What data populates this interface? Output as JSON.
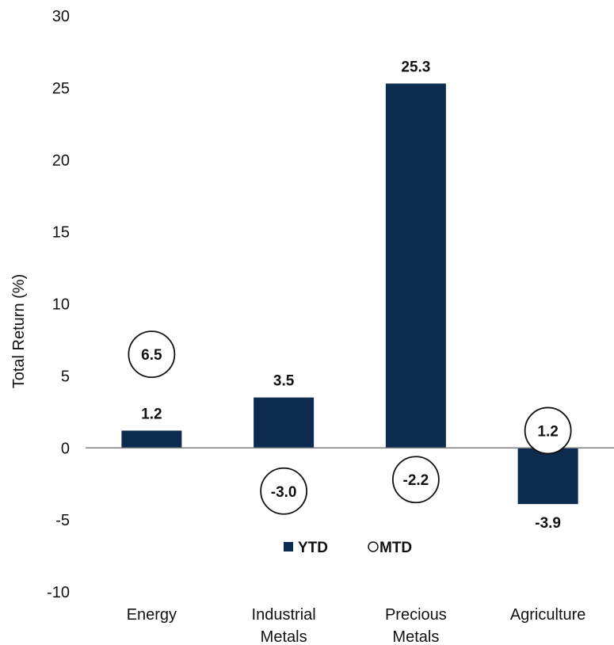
{
  "chart_data": {
    "type": "bar",
    "title": "",
    "xlabel": "",
    "ylabel": "Total Return (%)",
    "ylim": [
      -10,
      30
    ],
    "yticks": [
      -10,
      -5,
      0,
      5,
      10,
      15,
      20,
      25,
      30
    ],
    "ytick_labels": [
      "-10",
      "-5",
      "0",
      "5",
      "10",
      "15",
      "20",
      "25",
      "30"
    ],
    "categories": [
      [
        "Energy"
      ],
      [
        "Industrial",
        "Metals"
      ],
      [
        "Precious",
        "Metals"
      ],
      [
        "Agriculture"
      ]
    ],
    "series": [
      {
        "name": "YTD",
        "kind": "bar",
        "color": "#0d2a4f",
        "values": [
          1.2,
          3.5,
          25.3,
          -3.9
        ],
        "labels": [
          "1.2",
          "3.5",
          "25.3",
          "-3.9"
        ]
      },
      {
        "name": "MTD",
        "kind": "circle-marker",
        "color": "#ffffff",
        "values": [
          6.5,
          -3.0,
          -2.2,
          1.2
        ],
        "labels": [
          "6.5",
          "-3.0",
          "-2.2",
          "1.2"
        ]
      }
    ],
    "legend": {
      "placement": "bottom-center-inside",
      "items": [
        {
          "label": "YTD",
          "marker": "square",
          "color": "#0d2a4f"
        },
        {
          "label": "MTD",
          "marker": "circle",
          "color": "#ffffff"
        }
      ]
    },
    "grid": false
  }
}
